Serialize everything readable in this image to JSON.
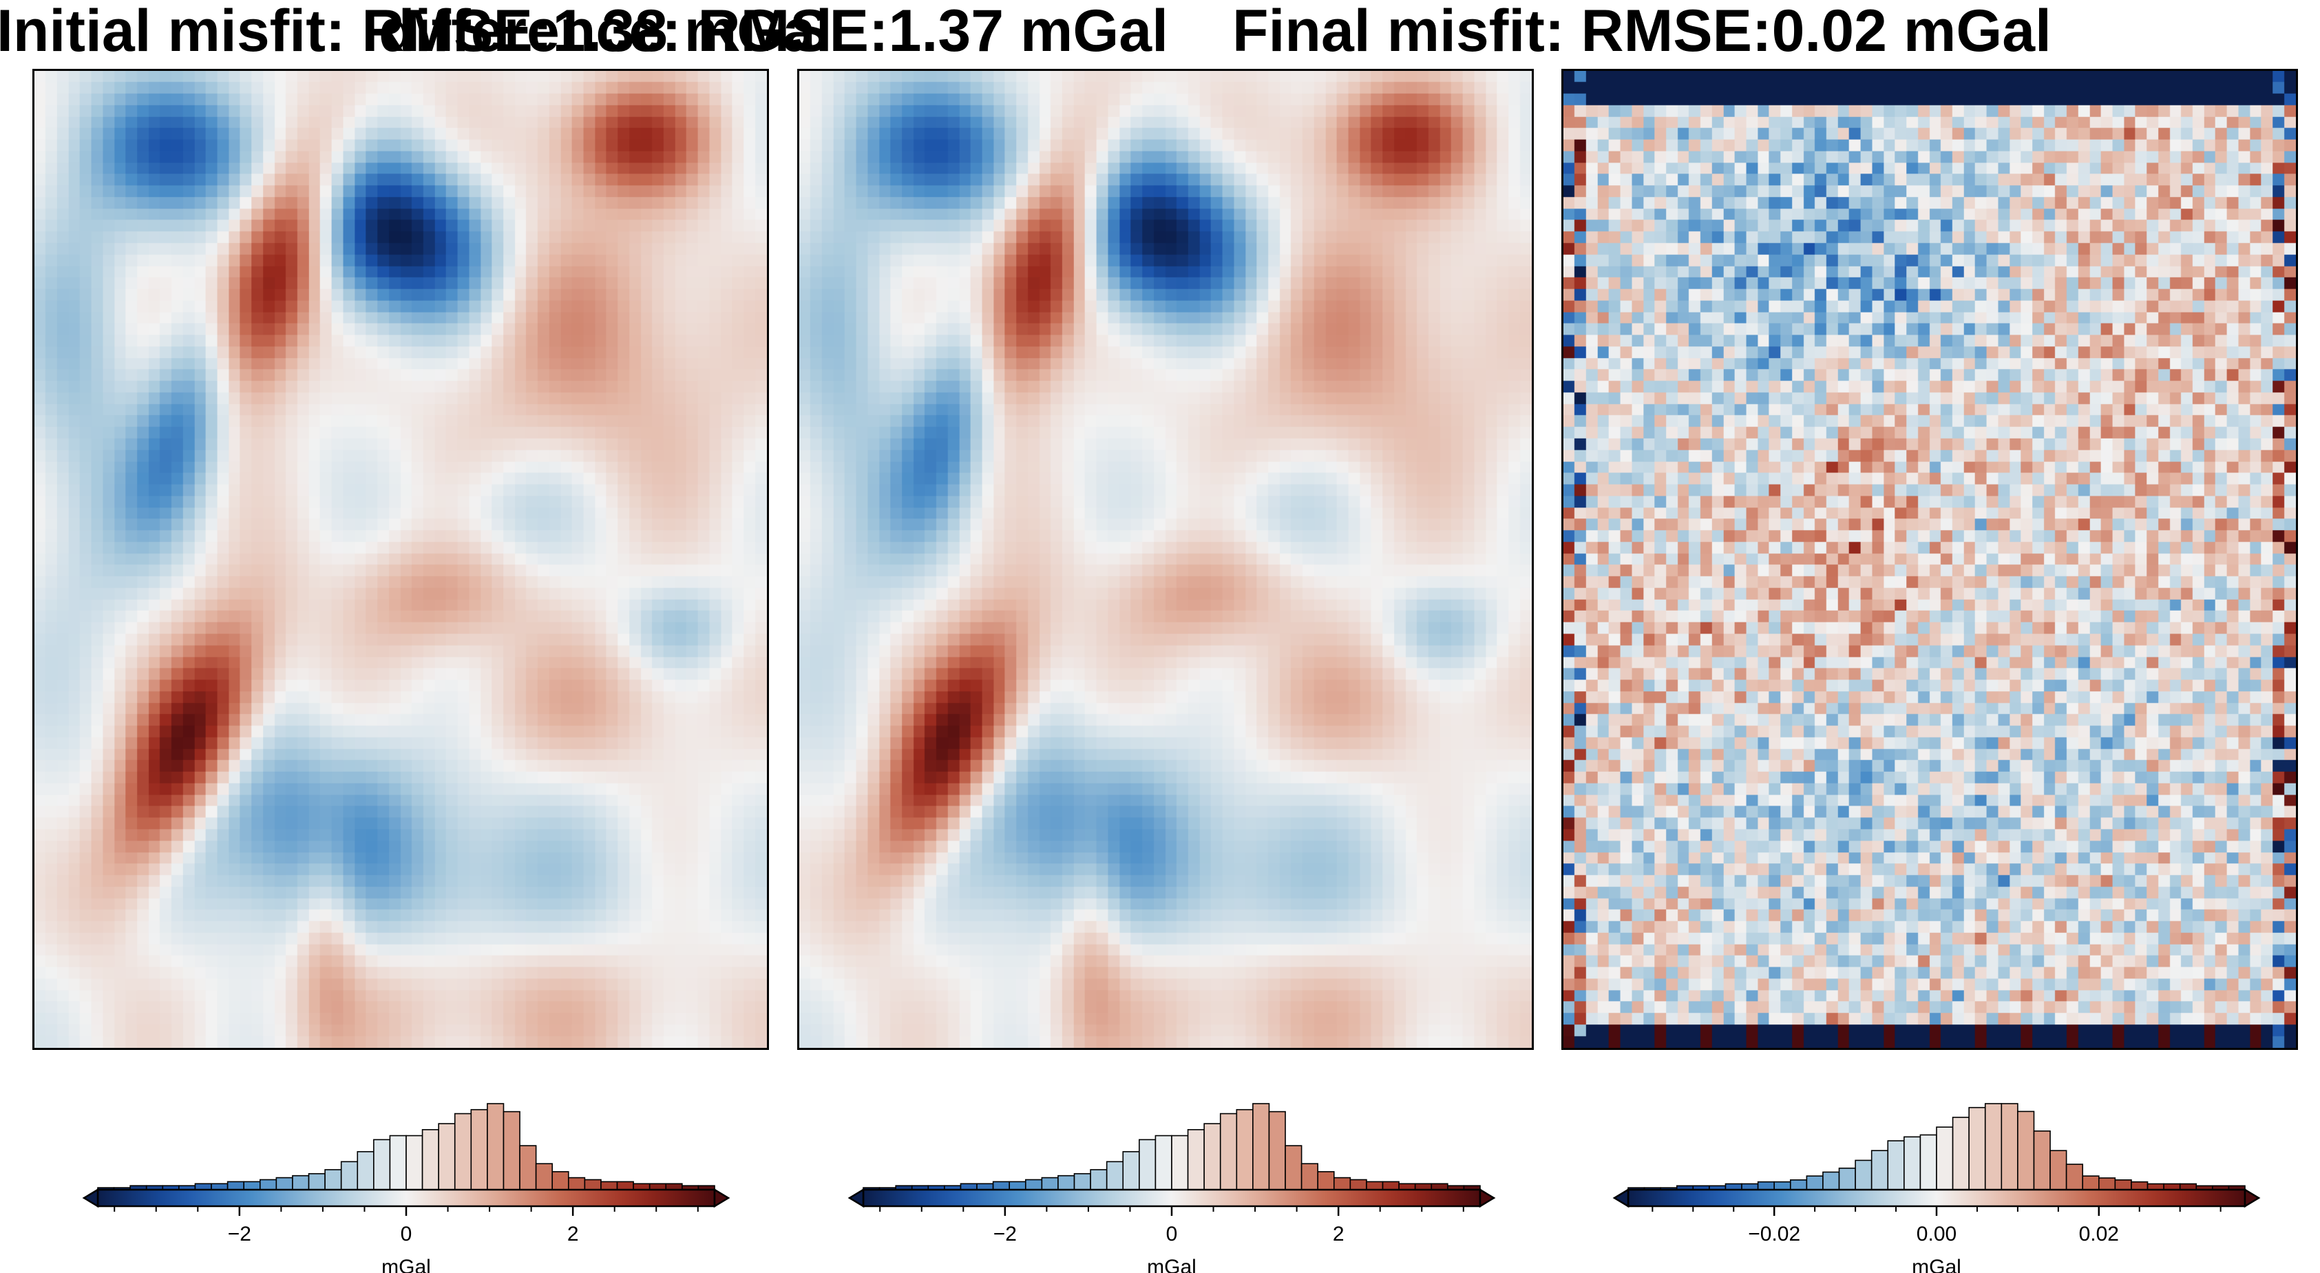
{
  "figure": {
    "panels": [
      {
        "title": "Initial misfit: RMSE:1.38 mGal",
        "colorbar_unit": "mGal"
      },
      {
        "title": "difference: RMSE:1.37 mGal",
        "colorbar_unit": "mGal"
      },
      {
        "title": "Final misfit: RMSE:0.02 mGal",
        "colorbar_unit": "mGal"
      }
    ]
  },
  "chart_data": [
    {
      "type": "heatmap",
      "title": "Initial misfit: RMSE:1.38 mGal",
      "colormap": "diverging blue-white-red",
      "colormap_colors": [
        "#0b1d4a",
        "#1a51a8",
        "#4b8ec8",
        "#a6c8dc",
        "#f2f2f2",
        "#e3b5a3",
        "#c56a52",
        "#9a2a1e",
        "#4a0b0e"
      ],
      "colorbar": {
        "range": [
          -3.7,
          3.7
        ],
        "ticks": [
          -2,
          0,
          2
        ],
        "tick_labels": [
          "−2",
          "0",
          "2"
        ],
        "label": "mGal",
        "extend": "both"
      },
      "histogram": {
        "bins": 38,
        "counts": [
          1,
          1,
          2,
          2,
          2,
          2,
          3,
          3,
          4,
          4,
          5,
          6,
          7,
          8,
          10,
          14,
          19,
          25,
          27,
          27,
          30,
          33,
          38,
          40,
          43,
          39,
          22,
          13,
          9,
          6,
          5,
          4,
          4,
          3,
          3,
          3,
          2,
          2
        ]
      }
    },
    {
      "type": "heatmap",
      "title": "difference: RMSE:1.37 mGal",
      "colormap": "diverging blue-white-red",
      "colormap_colors": [
        "#0b1d4a",
        "#1a51a8",
        "#4b8ec8",
        "#a6c8dc",
        "#f2f2f2",
        "#e3b5a3",
        "#c56a52",
        "#9a2a1e",
        "#4a0b0e"
      ],
      "colorbar": {
        "range": [
          -3.7,
          3.7
        ],
        "ticks": [
          -2,
          0,
          2
        ],
        "tick_labels": [
          "−2",
          "0",
          "2"
        ],
        "label": "mGal",
        "extend": "both"
      },
      "histogram": {
        "bins": 38,
        "counts": [
          1,
          1,
          2,
          2,
          2,
          2,
          3,
          3,
          4,
          4,
          5,
          6,
          7,
          8,
          10,
          14,
          19,
          25,
          27,
          27,
          30,
          33,
          38,
          40,
          43,
          39,
          22,
          13,
          9,
          6,
          5,
          4,
          4,
          3,
          3,
          3,
          2,
          2
        ]
      }
    },
    {
      "type": "heatmap",
      "title": "Final misfit: RMSE:0.02 mGal",
      "colormap": "diverging blue-white-red",
      "colormap_colors": [
        "#0b1d4a",
        "#1a51a8",
        "#4b8ec8",
        "#a6c8dc",
        "#f2f2f2",
        "#e3b5a3",
        "#c56a52",
        "#9a2a1e",
        "#4a0b0e"
      ],
      "colorbar": {
        "range": [
          -0.038,
          0.038
        ],
        "ticks": [
          -0.02,
          0.0,
          0.02
        ],
        "tick_labels": [
          "−0.02",
          "0.00",
          "0.02"
        ],
        "label": "mGal",
        "extend": "both"
      },
      "histogram": {
        "bins": 38,
        "counts": [
          1,
          1,
          1,
          2,
          2,
          2,
          3,
          3,
          4,
          4,
          5,
          7,
          9,
          11,
          15,
          20,
          25,
          27,
          28,
          32,
          37,
          42,
          44,
          44,
          40,
          30,
          20,
          13,
          7,
          6,
          5,
          4,
          3,
          3,
          3,
          2,
          2,
          2
        ]
      }
    }
  ]
}
